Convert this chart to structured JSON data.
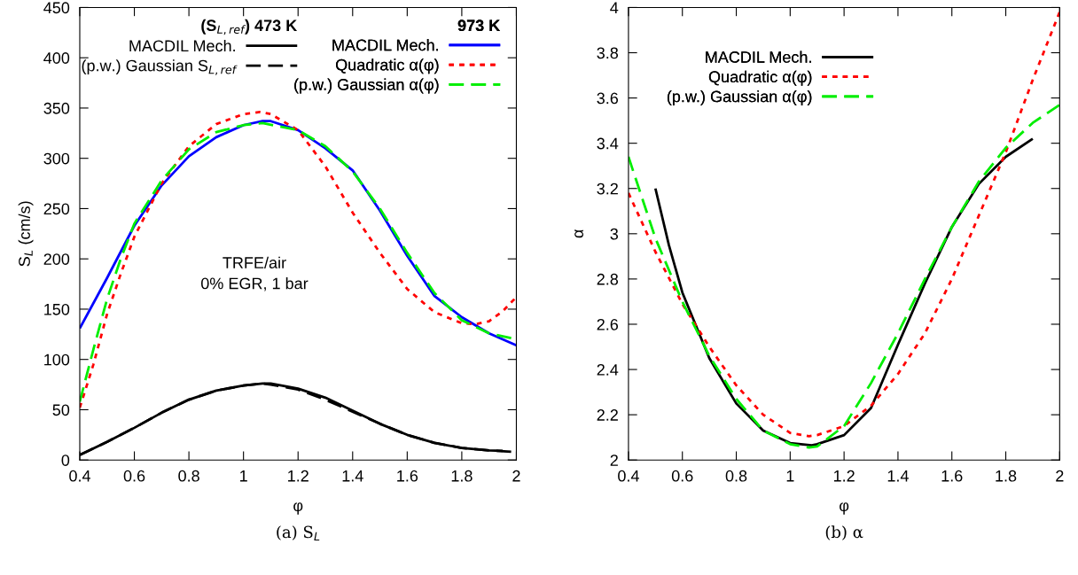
{
  "chart_data": [
    {
      "type": "line",
      "title": "(a) S$_{L}$",
      "xlabel": "φ",
      "ylabel": "S$_{L}$ (cm/s)",
      "annotations": [
        "(S$_{L,ref}$) 473 K",
        "973 K",
        "TRFE/air\n0% EGR, 1 bar"
      ],
      "xlim": [
        0.4,
        2
      ],
      "xticks": [
        0.4,
        0.6,
        0.8,
        1,
        1.2,
        1.4,
        1.6,
        1.8,
        2
      ],
      "ylim": [
        0,
        450
      ],
      "yticks": [
        0,
        50,
        100,
        150,
        200,
        250,
        300,
        350,
        400,
        450
      ],
      "grid": false,
      "legend": "top",
      "marker": "none",
      "series": [
        {
          "name": "MACDIL Mech.",
          "color": "#000000",
          "line_style": "solid",
          "x": [
            0.4,
            0.5,
            0.6,
            0.7,
            0.8,
            0.9,
            1.0,
            1.07,
            1.1,
            1.2,
            1.3,
            1.4,
            1.5,
            1.6,
            1.7,
            1.8,
            1.9,
            1.95
          ],
          "values": [
            5,
            18,
            32,
            47,
            60,
            69,
            74,
            76,
            76,
            71,
            62,
            49,
            36,
            25,
            17,
            12,
            9.5,
            9
          ]
        },
        {
          "name": "(p.w.) Gaussian S$_{L,ref}$",
          "color": "#000000",
          "line_style": "dashed",
          "x": [
            0.4,
            0.5,
            0.6,
            0.7,
            0.8,
            0.9,
            1.0,
            1.07,
            1.1,
            1.2,
            1.3,
            1.4,
            1.5,
            1.6,
            1.7,
            1.8,
            1.9,
            2.0
          ],
          "values": [
            5,
            18,
            32,
            47,
            60,
            69,
            74,
            76,
            75,
            70,
            60,
            48,
            36,
            25,
            17,
            12,
            9.5,
            8
          ]
        },
        {
          "name": "MACDIL Mech.",
          "color": "#0000ff",
          "line_style": "solid",
          "x": [
            0.4,
            0.5,
            0.6,
            0.7,
            0.8,
            0.9,
            1.0,
            1.07,
            1.1,
            1.2,
            1.3,
            1.4,
            1.5,
            1.6,
            1.7,
            1.8,
            1.9,
            2.0
          ],
          "values": [
            131,
            181,
            233,
            273,
            302,
            321,
            333,
            337,
            337,
            328,
            310,
            288,
            248,
            203,
            163,
            142,
            126,
            114
          ]
        },
        {
          "name": "Quadratic α(φ)",
          "color": "#ff0000",
          "line_style": "dotted",
          "x": [
            0.4,
            0.45,
            0.5,
            0.55,
            0.6,
            0.7,
            0.8,
            0.9,
            1.0,
            1.06,
            1.1,
            1.2,
            1.3,
            1.4,
            1.5,
            1.6,
            1.7,
            1.8,
            1.85,
            1.9,
            1.95,
            2.0
          ],
          "values": [
            52,
            95,
            145,
            185,
            222,
            275,
            312,
            334,
            344,
            346,
            344,
            328,
            292,
            246,
            206,
            170,
            147,
            136,
            135,
            138,
            148,
            162
          ]
        },
        {
          "name": "(p.w.) Gaussian α(φ)",
          "color": "#00ee00",
          "line_style": "dashed",
          "x": [
            0.4,
            0.45,
            0.5,
            0.55,
            0.6,
            0.7,
            0.8,
            0.9,
            1.0,
            1.07,
            1.2,
            1.3,
            1.4,
            1.5,
            1.6,
            1.7,
            1.8,
            1.9,
            2.0
          ],
          "values": [
            58,
            110,
            160,
            200,
            235,
            278,
            309,
            326,
            333,
            335,
            328,
            312,
            287,
            250,
            206,
            166,
            139,
            126,
            120
          ]
        }
      ]
    },
    {
      "type": "line",
      "title": "(b) α",
      "xlabel": "φ",
      "ylabel": "α",
      "xlim": [
        0.4,
        2
      ],
      "xticks": [
        0.4,
        0.6,
        0.8,
        1,
        1.2,
        1.4,
        1.6,
        1.8,
        2
      ],
      "ylim": [
        2,
        4
      ],
      "yticks": [
        2,
        2.2,
        2.4,
        2.6,
        2.8,
        3,
        3.2,
        3.4,
        3.6,
        3.8,
        4
      ],
      "grid": false,
      "legend": "top left",
      "marker": "none",
      "series": [
        {
          "name": "MACDIL Mech.",
          "color": "#000000",
          "line_style": "solid",
          "x": [
            0.5,
            0.55,
            0.6,
            0.7,
            0.8,
            0.9,
            1.0,
            1.08,
            1.1,
            1.2,
            1.3,
            1.4,
            1.5,
            1.6,
            1.7,
            1.8,
            1.9
          ],
          "values": [
            3.2,
            2.95,
            2.74,
            2.45,
            2.25,
            2.13,
            2.075,
            2.065,
            2.07,
            2.11,
            2.23,
            2.51,
            2.78,
            3.03,
            3.22,
            3.34,
            3.42
          ]
        },
        {
          "name": "Quadratic α(φ)",
          "color": "#ff0000",
          "line_style": "dotted",
          "x": [
            0.4,
            0.5,
            0.6,
            0.7,
            0.8,
            0.9,
            1.0,
            1.07,
            1.1,
            1.2,
            1.3,
            1.4,
            1.5,
            1.6,
            1.7,
            1.8,
            1.9,
            2.0
          ],
          "values": [
            3.18,
            2.92,
            2.69,
            2.5,
            2.33,
            2.2,
            2.12,
            2.105,
            2.11,
            2.15,
            2.24,
            2.38,
            2.56,
            2.8,
            3.08,
            3.36,
            3.68,
            3.98
          ]
        },
        {
          "name": "(p.w.) Gaussian α(φ)",
          "color": "#00ee00",
          "line_style": "dashed",
          "x": [
            0.4,
            0.5,
            0.6,
            0.7,
            0.8,
            0.9,
            1.0,
            1.07,
            1.1,
            1.2,
            1.3,
            1.4,
            1.5,
            1.6,
            1.7,
            1.8,
            1.9,
            2.0
          ],
          "values": [
            3.34,
            2.98,
            2.7,
            2.46,
            2.27,
            2.13,
            2.07,
            2.055,
            2.06,
            2.15,
            2.34,
            2.56,
            2.8,
            3.03,
            3.23,
            3.38,
            3.49,
            3.57
          ]
        }
      ]
    }
  ]
}
